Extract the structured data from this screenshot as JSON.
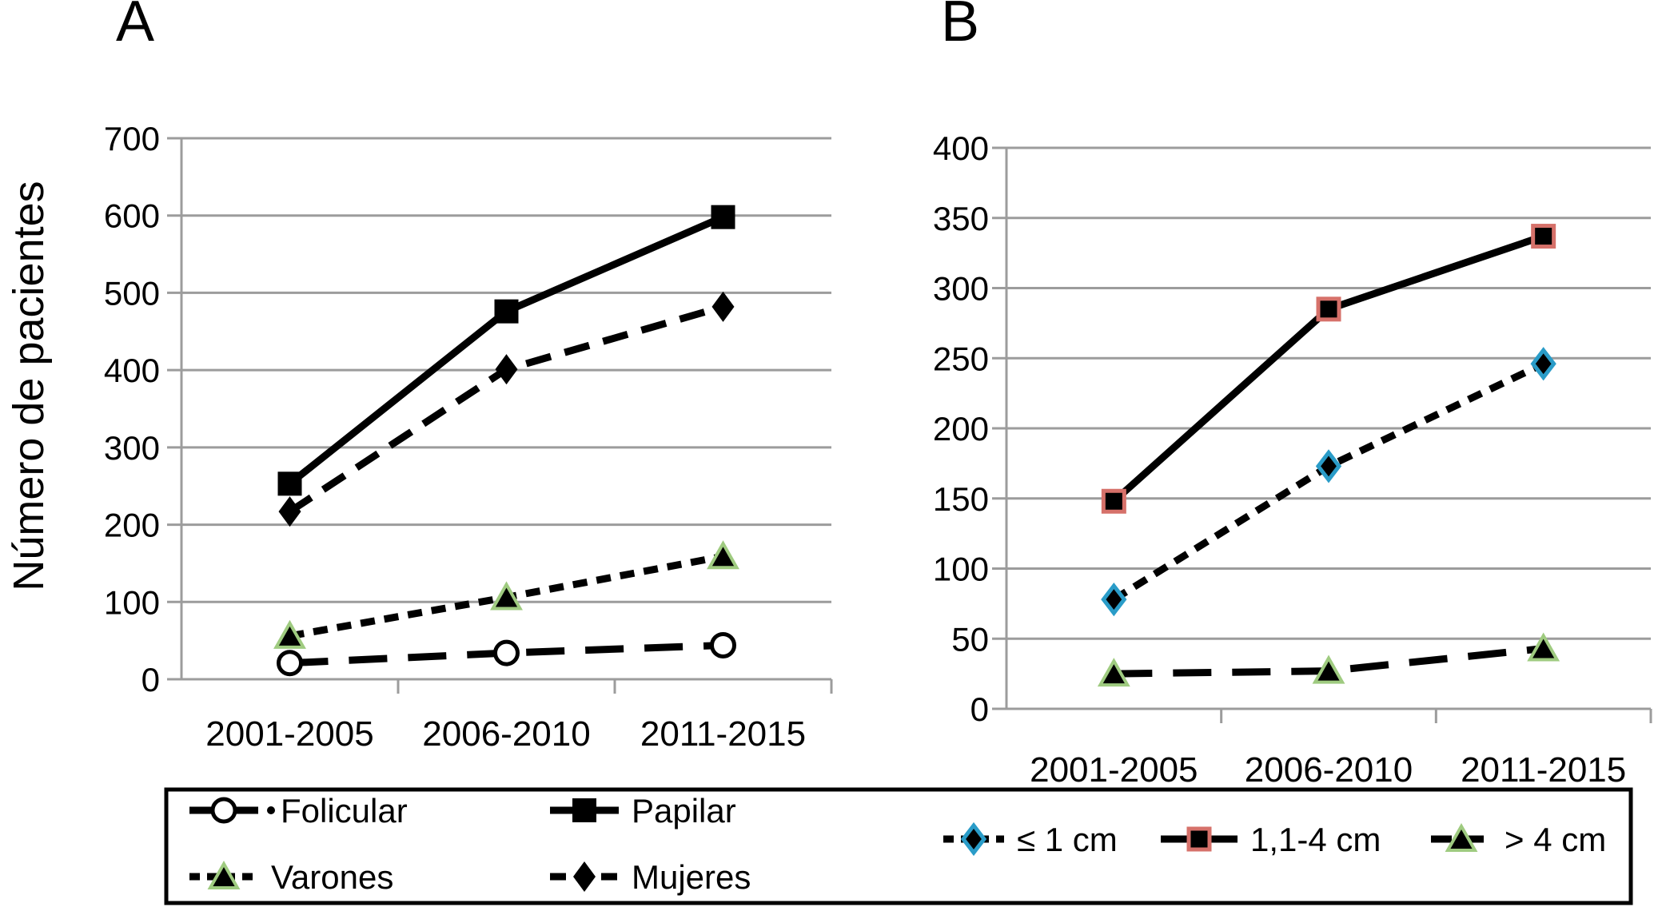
{
  "figure": {
    "panel_a_label": "A",
    "panel_b_label": "B",
    "y_axis_title": "Número de pacientes",
    "background": "#ffffff"
  },
  "colors": {
    "background": "#ffffff",
    "text": "#000000",
    "grid": "#9c9c9c",
    "axis": "#9c9c9c",
    "series_line": "#000000",
    "marker_fill": "#000000",
    "circle_fill": "#ffffff",
    "triangle_outline": "#9fcb80",
    "diamond_outline": "#2a9cc8",
    "square_outline": "#d6716a",
    "legend_border": "#000000"
  },
  "chart_data": [
    {
      "id": "A",
      "type": "line",
      "panel_label": "A",
      "title": "",
      "xlabel": "",
      "ylabel": "Número de pacientes",
      "categories": [
        "2001-2005",
        "2006-2010",
        "2011-2015"
      ],
      "ylim": [
        0,
        700
      ],
      "ytick_step": 100,
      "yticks": [
        0,
        100,
        200,
        300,
        400,
        500,
        600,
        700
      ],
      "grid": true,
      "legend_position": "bottom",
      "series": [
        {
          "name": "Folicular",
          "values": [
            21,
            34,
            44
          ],
          "marker": "circle-open",
          "line_dash": "long"
        },
        {
          "name": "Papilar",
          "values": [
            253,
            476,
            598
          ],
          "marker": "square",
          "line_dash": "solid"
        },
        {
          "name": "Varones",
          "values": [
            56,
            106,
            159
          ],
          "marker": "triangle",
          "line_dash": "short"
        },
        {
          "name": "Mujeres",
          "values": [
            217,
            401,
            482
          ],
          "marker": "diamond",
          "line_dash": "medium"
        }
      ]
    },
    {
      "id": "B",
      "type": "line",
      "panel_label": "B",
      "title": "",
      "xlabel": "",
      "ylabel": "",
      "categories": [
        "2001-2005",
        "2006-2010",
        "2011-2015"
      ],
      "ylim": [
        0,
        400
      ],
      "ytick_step": 50,
      "yticks": [
        0,
        50,
        100,
        150,
        200,
        250,
        300,
        350,
        400
      ],
      "grid": true,
      "legend_position": "bottom",
      "series": [
        {
          "name": "≤ 1 cm",
          "values": [
            78,
            173,
            246
          ],
          "marker": "diamond-blue",
          "line_dash": "short"
        },
        {
          "name": "1,1-4 cm",
          "values": [
            148,
            285,
            337
          ],
          "marker": "square-red",
          "line_dash": "solid"
        },
        {
          "name": "> 4 cm",
          "values": [
            25,
            27,
            43
          ],
          "marker": "triangle",
          "line_dash": "long"
        }
      ]
    }
  ],
  "legend": {
    "groups": [
      {
        "chart": "A",
        "entries": [
          {
            "label": "Folicular",
            "marker": "circle-open",
            "line_dash": "long",
            "dot_after": true
          },
          {
            "label": "Papilar",
            "marker": "square",
            "line_dash": "solid"
          },
          {
            "label": "Varones",
            "marker": "triangle",
            "line_dash": "short"
          },
          {
            "label": "Mujeres",
            "marker": "diamond",
            "line_dash": "medium"
          }
        ]
      },
      {
        "chart": "B",
        "entries": [
          {
            "label": "≤ 1 cm",
            "marker": "diamond-blue",
            "line_dash": "short"
          },
          {
            "label": "1,1-4 cm",
            "marker": "square-red",
            "line_dash": "solid"
          },
          {
            "label": "> 4 cm",
            "marker": "triangle",
            "line_dash": "long"
          }
        ]
      }
    ]
  }
}
